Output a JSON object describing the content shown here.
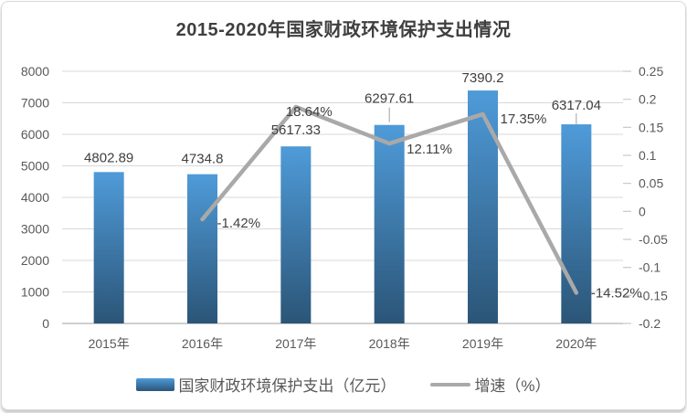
{
  "title": "2015-2020年国家财政环境保护支出情况",
  "chart_data": {
    "type": "combo-bar-line",
    "categories": [
      "2015年",
      "2016年",
      "2017年",
      "2018年",
      "2019年",
      "2020年"
    ],
    "series": [
      {
        "name": "国家财政环境保护支出（亿元）",
        "type": "bar",
        "axis": "left",
        "values": [
          4802.89,
          4734.8,
          5617.33,
          6297.61,
          7390.2,
          6317.04
        ],
        "labels": [
          "4802.89",
          "4734.8",
          "5617.33",
          "6297.61",
          "7390.2",
          "6317.04"
        ]
      },
      {
        "name": "增速（%）",
        "type": "line",
        "axis": "right",
        "values": [
          null,
          -0.0142,
          0.1864,
          0.1211,
          0.1735,
          -0.1452
        ],
        "labels": [
          "",
          "-1.42%",
          "18.64%",
          "12.11%",
          "17.35%",
          "-14.52%"
        ]
      }
    ],
    "left_axis": {
      "min": 0,
      "max": 8000,
      "step": 1000,
      "tick_labels": [
        "0",
        "1000",
        "2000",
        "3000",
        "4000",
        "5000",
        "6000",
        "7000",
        "8000"
      ]
    },
    "right_axis": {
      "min": -0.2,
      "max": 0.25,
      "step": 0.05,
      "tick_labels": [
        "-0.2",
        "-0.15",
        "-0.1",
        "-0.05",
        "0",
        "0.05",
        "0.1",
        "0.15",
        "0.2",
        "0.25"
      ]
    },
    "grid": true,
    "legend_position": "bottom"
  },
  "legend": {
    "items": [
      {
        "label": "国家财政环境保护支出（亿元）",
        "swatch": "bar"
      },
      {
        "label": "增速（%）",
        "swatch": "line"
      }
    ]
  },
  "colors": {
    "bar_top": "#4f9bd9",
    "bar_bottom": "#2b5577",
    "line": "#a9a9a9",
    "grid": "#d9d9d9",
    "axis_line": "#cfcfcf",
    "tick": "#c9c9c9",
    "leader": "#a0a0a0",
    "axis_text": "#595959",
    "label_text": "#404040",
    "title_text": "#3f3f3f"
  }
}
